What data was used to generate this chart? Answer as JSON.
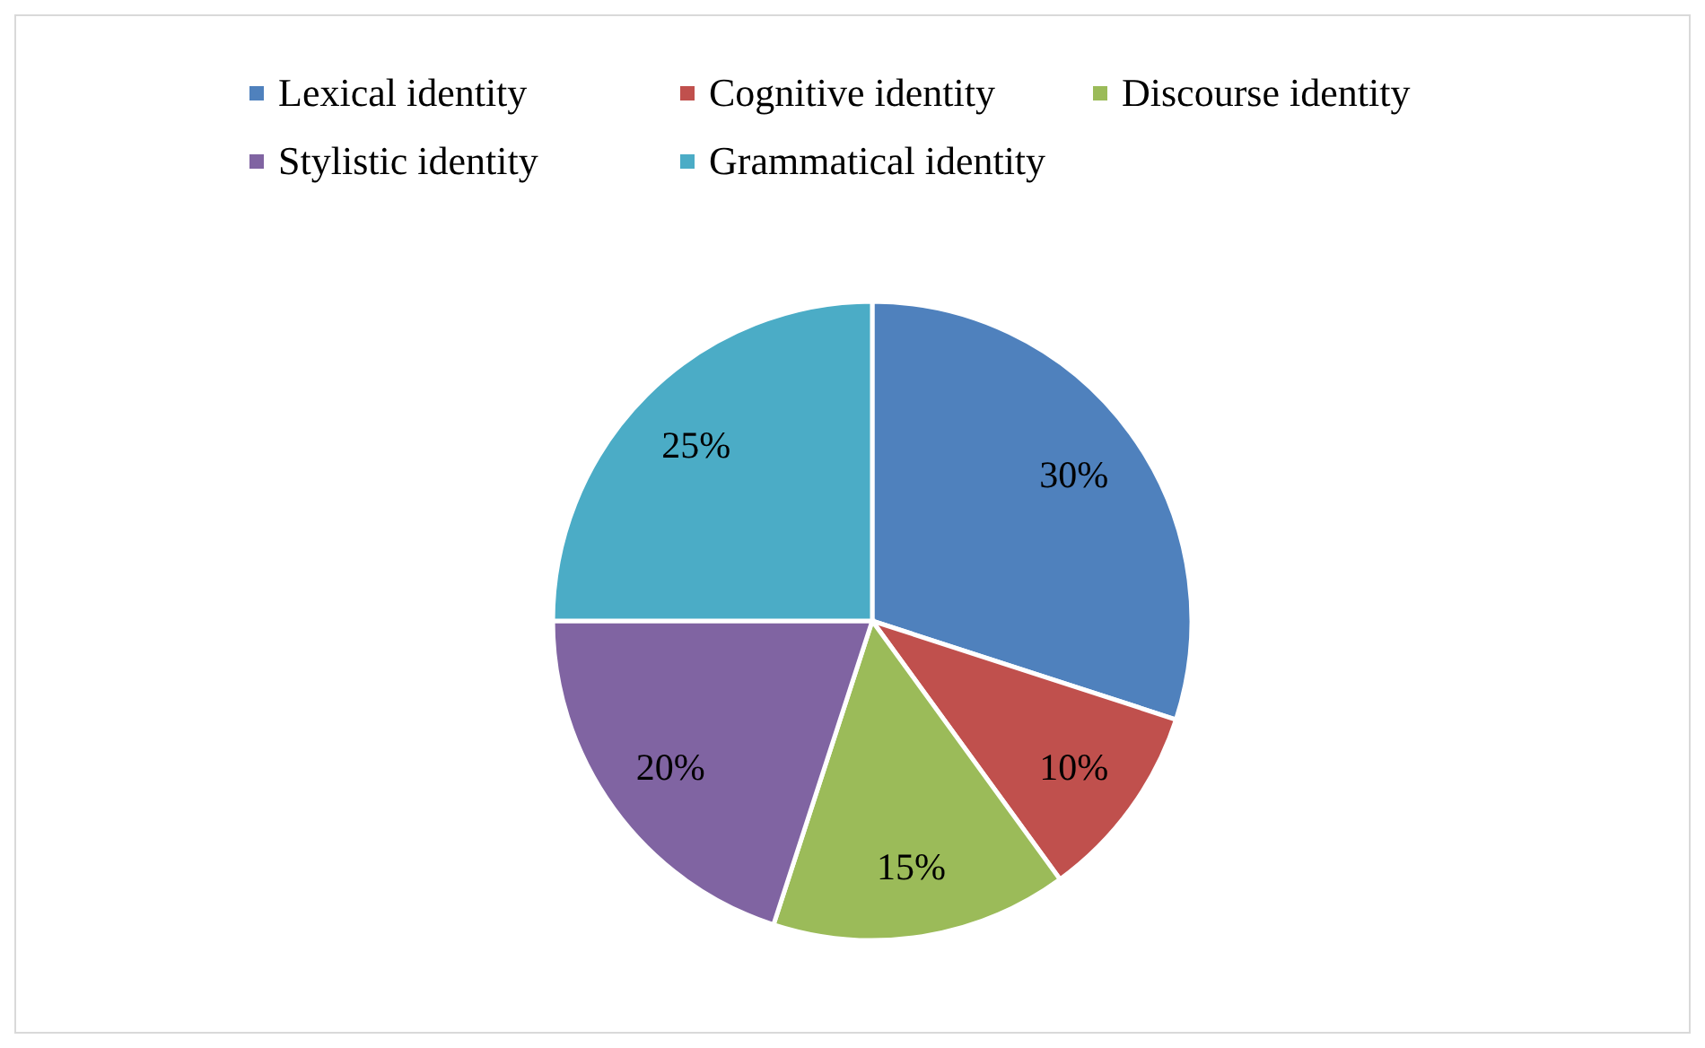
{
  "chart_data": {
    "type": "pie",
    "categories": [
      "Lexical identity",
      "Cognitive identity",
      "Discourse identity",
      "Stylistic identity",
      "Grammatical identity"
    ],
    "values": [
      30,
      10,
      15,
      20,
      25
    ],
    "colors": [
      "#4f81bd",
      "#c0504d",
      "#9bbb59",
      "#8064a2",
      "#4bacc6"
    ],
    "value_labels": [
      "30%",
      "10%",
      "15%",
      "20%",
      "25%"
    ],
    "legend": "top"
  }
}
